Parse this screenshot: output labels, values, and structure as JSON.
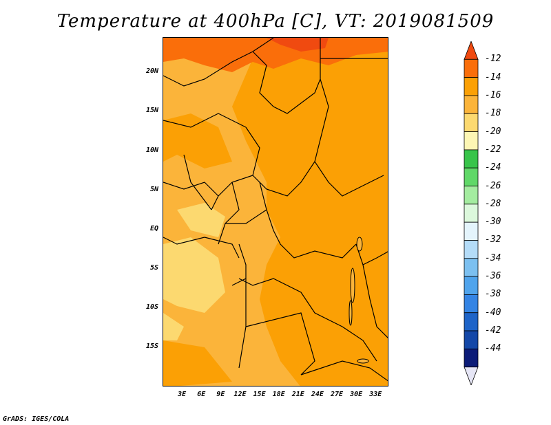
{
  "title": "Temperature at 400hPa [C], VT: 2019081509",
  "credit": "GrADS: IGES/COLA",
  "map": {
    "lon_range": [
      0,
      35
    ],
    "lat_range": [
      -20,
      24.5
    ],
    "lat_ticks": [
      {
        "value": 20,
        "label": "20N"
      },
      {
        "value": 15,
        "label": "15N"
      },
      {
        "value": 10,
        "label": "10N"
      },
      {
        "value": 5,
        "label": "5N"
      },
      {
        "value": 0,
        "label": "EQ"
      },
      {
        "value": -5,
        "label": "5S"
      },
      {
        "value": -10,
        "label": "10S"
      },
      {
        "value": -15,
        "label": "15S"
      }
    ],
    "lon_ticks": [
      {
        "value": 3,
        "label": "3E"
      },
      {
        "value": 6,
        "label": "6E"
      },
      {
        "value": 9,
        "label": "9E"
      },
      {
        "value": 12,
        "label": "12E"
      },
      {
        "value": 15,
        "label": "15E"
      },
      {
        "value": 18,
        "label": "18E"
      },
      {
        "value": 21,
        "label": "21E"
      },
      {
        "value": 24,
        "label": "24E"
      },
      {
        "value": 27,
        "label": "27E"
      },
      {
        "value": 30,
        "label": "30E"
      },
      {
        "value": 33,
        "label": "33E"
      }
    ]
  },
  "colorbar": {
    "labels": [
      "-12",
      "-14",
      "-16",
      "-18",
      "-20",
      "-22",
      "-24",
      "-26",
      "-28",
      "-30",
      "-32",
      "-34",
      "-36",
      "-38",
      "-40",
      "-42",
      "-44"
    ],
    "colors": [
      "#f04a10",
      "#fa6e0a",
      "#fba005",
      "#fbb43a",
      "#fcd970",
      "#fdf6b4",
      "#38c44a",
      "#60d868",
      "#a4eca0",
      "#dcf8dc",
      "#e4f4fc",
      "#b4dcf8",
      "#7cc0f0",
      "#50a4ec",
      "#3484e4",
      "#1e64c8",
      "#1448a8",
      "#0c1c78",
      "#e6e6f6"
    ]
  }
}
